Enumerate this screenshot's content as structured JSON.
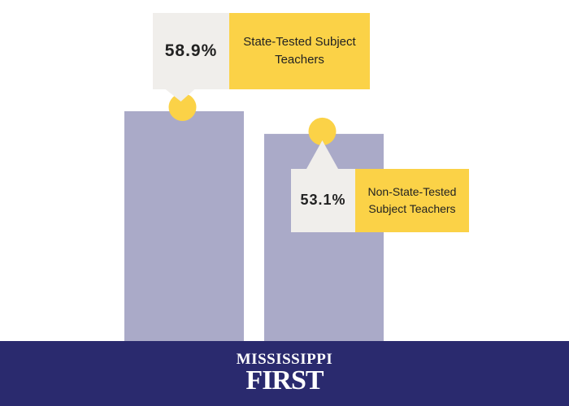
{
  "chart_data": {
    "type": "bar",
    "categories": [
      "State-Tested Subject Teachers",
      "Non-State-Tested Subject Teachers"
    ],
    "values": [
      58.9,
      53.1
    ],
    "value_labels": [
      "58.9%",
      "53.1%"
    ],
    "color": "#aaaac8",
    "accent_color": "#fbd247"
  },
  "brand": {
    "line1": "MISSISSIPPI",
    "line2": "FIRST"
  }
}
